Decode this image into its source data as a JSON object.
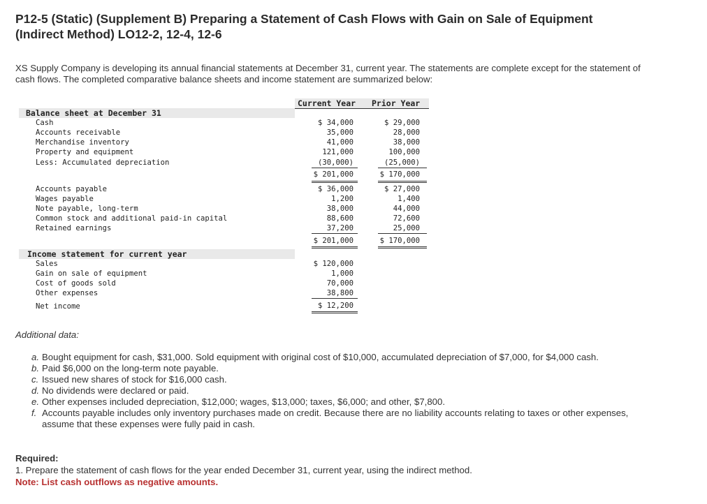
{
  "title": "P12-5 (Static) (Supplement B) Preparing a Statement of Cash Flows with Gain on Sale of Equipment (Indirect Method) LO12-2, 12-4, 12-6",
  "intro": "XS Supply Company is developing its annual financial statements at December 31, current year. The statements are complete except for the statement of cash flows. The completed comparative balance sheets and income statement are summarized below:",
  "table": {
    "col_current": "Current Year",
    "col_prior": "Prior Year",
    "balance_header": "Balance sheet at December 31",
    "assets": [
      {
        "label": "Cash",
        "cur": "$ 34,000",
        "prior": "$ 29,000"
      },
      {
        "label": "Accounts receivable",
        "cur": "35,000",
        "prior": "28,000"
      },
      {
        "label": "Merchandise inventory",
        "cur": "41,000",
        "prior": "38,000"
      },
      {
        "label": "Property and equipment",
        "cur": "121,000",
        "prior": "100,000"
      },
      {
        "label": "Less: Accumulated depreciation",
        "cur": "(30,000)",
        "prior": "(25,000)"
      }
    ],
    "assets_total": {
      "cur": "$ 201,000",
      "prior": "$ 170,000"
    },
    "liabilities": [
      {
        "label": "Accounts payable",
        "cur": "$ 36,000",
        "prior": "$ 27,000"
      },
      {
        "label": "Wages payable",
        "cur": "1,200",
        "prior": "1,400"
      },
      {
        "label": "Note payable, long-term",
        "cur": "38,000",
        "prior": "44,000"
      },
      {
        "label": "Common stock and additional paid-in capital",
        "cur": "88,600",
        "prior": "72,600"
      },
      {
        "label": "Retained earnings",
        "cur": "37,200",
        "prior": "25,000"
      }
    ],
    "liabilities_total": {
      "cur": "$ 201,000",
      "prior": "$ 170,000"
    },
    "income_header": "Income statement for current year",
    "income": [
      {
        "label": "Sales",
        "cur": "$ 120,000"
      },
      {
        "label": "Gain on sale of equipment",
        "cur": "1,000"
      },
      {
        "label": "Cost of goods sold",
        "cur": "70,000"
      },
      {
        "label": "Other expenses",
        "cur": "38,800"
      }
    ],
    "net_income": {
      "label": "Net income",
      "cur": "$ 12,200"
    }
  },
  "additional_label": "Additional data:",
  "additional": [
    {
      "letter": "a.",
      "text": "Bought equipment for cash, $31,000. Sold equipment with original cost of $10,000, accumulated depreciation of $7,000, for $4,000 cash."
    },
    {
      "letter": "b.",
      "text": "Paid $6,000 on the long-term note payable."
    },
    {
      "letter": "c.",
      "text": "Issued new shares of stock for $16,000 cash."
    },
    {
      "letter": "d.",
      "text": "No dividends were declared or paid."
    },
    {
      "letter": "e.",
      "text": "Other expenses included depreciation, $12,000; wages, $13,000; taxes, $6,000; and other, $7,800."
    },
    {
      "letter": "f.",
      "text": "Accounts payable includes only inventory purchases made on credit. Because there are no liability accounts relating to taxes or other expenses, assume that these expenses were fully paid in cash."
    }
  ],
  "required": {
    "heading": "Required:",
    "item1": "1. Prepare the statement of cash flows for the year ended December 31, current year, using the indirect method.",
    "note": "Note: List cash outflows as negative amounts."
  }
}
